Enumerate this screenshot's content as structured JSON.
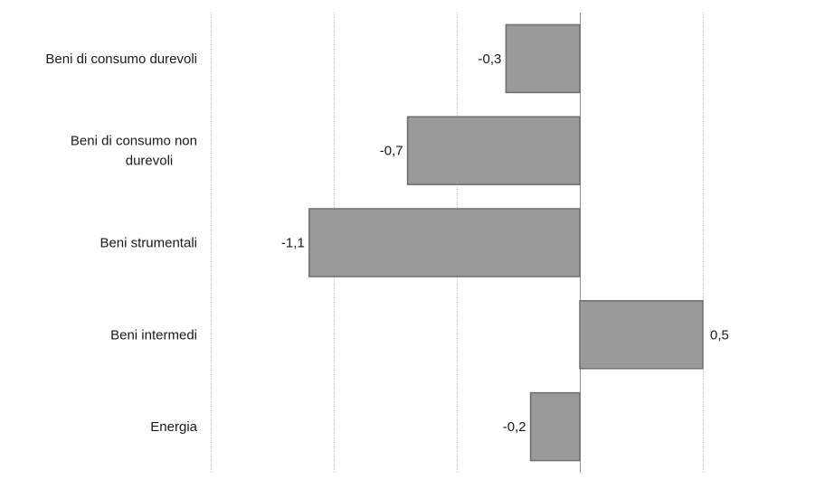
{
  "chart_data": {
    "type": "bar",
    "orientation": "horizontal",
    "categories": [
      "Beni di consumo durevoli",
      "Beni di consumo non durevoli",
      "Beni strumentali",
      "Beni intermedi",
      "Energia"
    ],
    "values": [
      -0.3,
      -0.7,
      -1.1,
      0.5,
      -0.2
    ],
    "value_labels": [
      "-0,3",
      "-0,7",
      "-1,1",
      "0,5",
      "-0,2"
    ],
    "xlim": [
      -1.5,
      0.5
    ],
    "gridlines": [
      -1.5,
      -1.0,
      -0.5,
      0.0,
      0.5
    ],
    "grid": true,
    "bar_color": "#9a9a9a",
    "bar_border_color": "#6e6e6e",
    "title": "",
    "xlabel": "",
    "ylabel": ""
  }
}
